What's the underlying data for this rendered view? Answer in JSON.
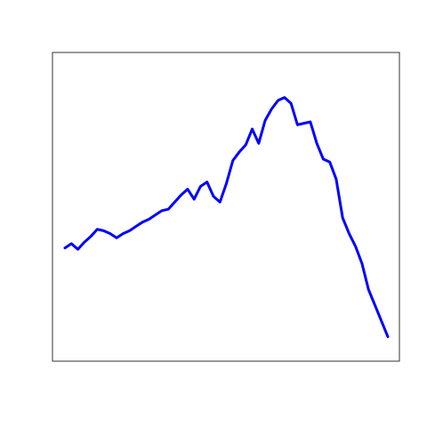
{
  "chart_data": {
    "type": "line",
    "title": "",
    "xlabel": "",
    "ylabel": "",
    "grid": false,
    "axes_visible": false,
    "xlim": [
      0,
      100
    ],
    "ylim": [
      0,
      100
    ],
    "x": [
      0,
      2,
      4,
      6,
      8,
      10,
      12,
      14,
      16,
      18,
      20,
      22,
      24,
      26,
      28,
      30,
      32,
      34,
      36,
      38,
      40,
      42,
      44,
      46,
      48,
      50,
      52,
      54,
      56,
      58,
      60,
      62,
      64,
      66,
      68,
      70,
      72,
      74,
      76,
      78,
      80,
      82,
      84,
      86,
      88,
      90,
      92,
      94,
      96,
      98,
      100
    ],
    "series": [
      {
        "color": "#0000ff",
        "values": [
          35.5,
          37.0,
          35.0,
          37.5,
          39.5,
          42.0,
          41.5,
          40.5,
          39.0,
          40.5,
          41.5,
          43.0,
          44.5,
          45.5,
          47.0,
          48.5,
          49.0,
          51.5,
          54.0,
          56.0,
          52.5,
          57.0,
          58.5,
          53.5,
          51.5,
          58.0,
          66.0,
          69.0,
          71.5,
          77.0,
          72.0,
          80.0,
          84.0,
          87.0,
          88.0,
          86.0,
          78.5,
          79.0,
          79.5,
          72.0,
          66.5,
          65.5,
          59.5,
          46.0,
          40.5,
          36.0,
          30.0,
          21.0,
          15.5,
          10.0,
          4.5
        ]
      }
    ]
  }
}
